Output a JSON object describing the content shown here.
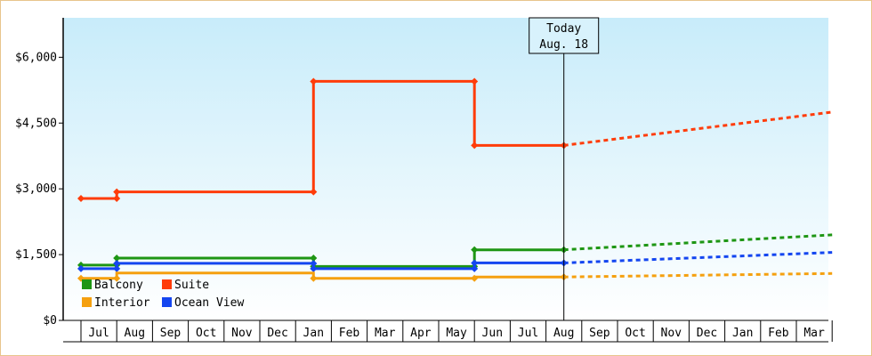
{
  "chart_data": {
    "type": "line",
    "step": true,
    "yaxis": {
      "ylim": [
        0,
        6900
      ],
      "ticks": [
        0,
        1500,
        3000,
        4500,
        6000
      ],
      "tick_labels": [
        "$0",
        "$1,500",
        "$3,000",
        "$4,500",
        "$6,000"
      ]
    },
    "xaxis": {
      "tick_labels": [
        "Jul",
        "Aug",
        "Sep",
        "Oct",
        "Nov",
        "Dec",
        "Jan",
        "Feb",
        "Mar",
        "Apr",
        "May",
        "Jun",
        "Jul",
        "Aug",
        "Sep",
        "Oct",
        "Nov",
        "Dec",
        "Jan",
        "Feb",
        "Mar"
      ]
    },
    "today": {
      "line1": "Today",
      "line2": "Aug. 18",
      "month_index": 13.0
    },
    "grid": false,
    "legend_position": "bottom-left",
    "series": [
      {
        "name": "Suite",
        "color": "#ff3c0a",
        "actual": [
          [
            -0.5,
            2780
          ],
          [
            0.5,
            2780
          ],
          [
            0.5,
            2930
          ],
          [
            6.0,
            2930
          ],
          [
            6.0,
            5450
          ],
          [
            10.5,
            5450
          ],
          [
            10.5,
            3990
          ],
          [
            13.0,
            3990
          ]
        ],
        "points": [
          [
            -0.5,
            2780
          ],
          [
            0.5,
            2780
          ],
          [
            0.5,
            2930
          ],
          [
            6.0,
            2930
          ],
          [
            6.0,
            5450
          ],
          [
            10.5,
            5450
          ],
          [
            10.5,
            3990
          ],
          [
            13.0,
            3990
          ]
        ],
        "forecast": [
          [
            13.0,
            3990
          ],
          [
            20.5,
            4750
          ]
        ]
      },
      {
        "name": "Balcony",
        "color": "#1e9614",
        "actual": [
          [
            -0.5,
            1260
          ],
          [
            0.5,
            1260
          ],
          [
            0.5,
            1420
          ],
          [
            6.0,
            1420
          ],
          [
            6.0,
            1230
          ],
          [
            10.5,
            1230
          ],
          [
            10.5,
            1610
          ],
          [
            13.0,
            1610
          ]
        ],
        "points": [
          [
            -0.5,
            1260
          ],
          [
            0.5,
            1260
          ],
          [
            0.5,
            1420
          ],
          [
            6.0,
            1420
          ],
          [
            6.0,
            1230
          ],
          [
            10.5,
            1230
          ],
          [
            10.5,
            1610
          ],
          [
            13.0,
            1610
          ]
        ],
        "forecast": [
          [
            13.0,
            1610
          ],
          [
            20.5,
            1950
          ]
        ]
      },
      {
        "name": "Ocean View",
        "color": "#1446f0",
        "actual": [
          [
            -0.5,
            1180
          ],
          [
            0.5,
            1180
          ],
          [
            0.5,
            1300
          ],
          [
            6.0,
            1300
          ],
          [
            6.0,
            1180
          ],
          [
            10.5,
            1180
          ],
          [
            10.5,
            1310
          ],
          [
            13.0,
            1310
          ]
        ],
        "points": [
          [
            -0.5,
            1180
          ],
          [
            0.5,
            1180
          ],
          [
            0.5,
            1300
          ],
          [
            6.0,
            1300
          ],
          [
            6.0,
            1180
          ],
          [
            10.5,
            1180
          ],
          [
            10.5,
            1310
          ],
          [
            13.0,
            1310
          ]
        ],
        "forecast": [
          [
            13.0,
            1310
          ],
          [
            20.5,
            1550
          ]
        ]
      },
      {
        "name": "Interior",
        "color": "#f5a00f",
        "actual": [
          [
            -0.5,
            960
          ],
          [
            0.5,
            960
          ],
          [
            0.5,
            1080
          ],
          [
            6.0,
            1080
          ],
          [
            6.0,
            960
          ],
          [
            10.5,
            960
          ],
          [
            10.5,
            990
          ],
          [
            13.0,
            990
          ]
        ],
        "points": [
          [
            -0.5,
            960
          ],
          [
            0.5,
            960
          ],
          [
            6.0,
            960
          ],
          [
            10.5,
            960
          ],
          [
            13.0,
            990
          ]
        ],
        "forecast": [
          [
            13.0,
            990
          ],
          [
            20.5,
            1070
          ]
        ]
      }
    ],
    "legend": [
      {
        "name": "Balcony",
        "color": "#1e9614"
      },
      {
        "name": "Suite",
        "color": "#ff3c0a"
      },
      {
        "name": "Interior",
        "color": "#f5a00f"
      },
      {
        "name": "Ocean View",
        "color": "#1446f0"
      }
    ]
  }
}
